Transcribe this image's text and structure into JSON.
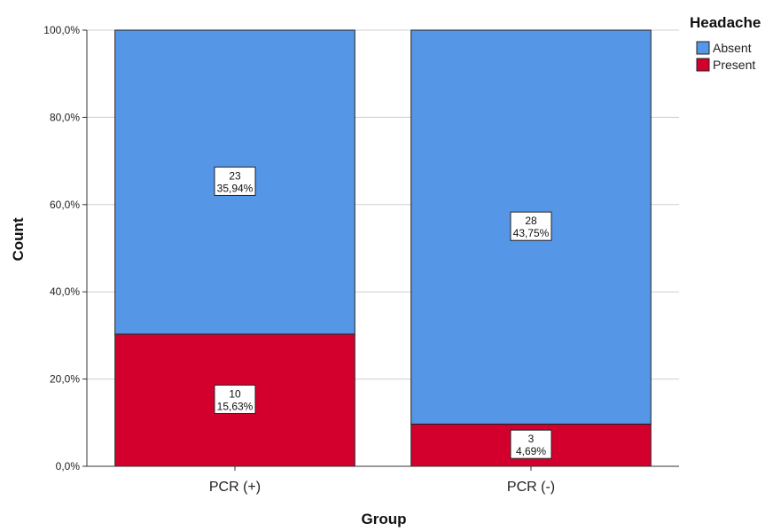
{
  "chart_data": {
    "type": "bar",
    "stacked": true,
    "percent_stacked": true,
    "categories": [
      "PCR (+)",
      "PCR (-)"
    ],
    "series": [
      {
        "name": "Absent",
        "color": "#5596e6",
        "values": [
          23,
          28
        ],
        "labels": [
          "35,94%",
          "43,75%"
        ]
      },
      {
        "name": "Present",
        "color": "#d3002d",
        "values": [
          10,
          3
        ],
        "labels": [
          "15,63%",
          "4,69%"
        ]
      }
    ],
    "xlabel": "Group",
    "ylabel": "Count",
    "ylim": [
      0,
      100
    ],
    "yticks": [
      "0,0%",
      "20,0%",
      "40,0%",
      "60,0%",
      "80,0%",
      "100,0%"
    ],
    "grid": true,
    "legend": {
      "title": "Headache",
      "position": "top-right"
    }
  }
}
